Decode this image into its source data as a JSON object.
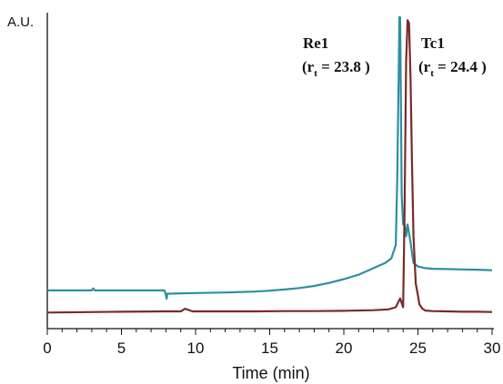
{
  "chart_data": {
    "type": "line",
    "title": "",
    "xlabel": "Time (min)",
    "ylabel": "A.U.",
    "xlim": [
      0,
      30
    ],
    "ylim": [
      0,
      100
    ],
    "xticks": [
      "0",
      "5",
      "10",
      "15",
      "20",
      "25",
      "30"
    ],
    "grid": false,
    "legend": "none",
    "series": [
      {
        "name": "",
        "color": "#2e8fa0",
        "x": [
          0,
          3.0,
          3.1,
          3.2,
          7.9,
          8.0,
          8.05,
          8.1,
          8.2,
          10,
          12,
          14,
          15,
          16,
          17,
          18,
          19,
          20,
          21,
          22,
          22.8,
          23.2,
          23.5,
          23.6,
          23.7,
          23.75,
          23.8,
          23.85,
          23.9,
          24.0,
          24.1,
          24.2,
          24.3,
          24.5,
          24.7,
          25.0,
          25.5,
          26,
          27,
          28,
          29,
          30
        ],
        "y": [
          7.7,
          7.7,
          8.4,
          7.7,
          7.7,
          6.2,
          4.9,
          6.6,
          6.6,
          6.8,
          7.0,
          7.3,
          7.6,
          8.0,
          8.5,
          9.2,
          10.2,
          11.5,
          13.0,
          15.2,
          17.0,
          18.5,
          23.0,
          45.0,
          80.0,
          100.0,
          100.0,
          70.0,
          40.0,
          30.0,
          30.0,
          26.0,
          30.0,
          24.0,
          17.0,
          15.8,
          15.2,
          15.0,
          14.9,
          14.8,
          14.7,
          14.5
        ]
      },
      {
        "name": "",
        "color": "#7a2a2a",
        "x": [
          0,
          5,
          8,
          9.0,
          9.3,
          9.8,
          10,
          12,
          14,
          16,
          18,
          20,
          22,
          23,
          23.5,
          23.8,
          24.0,
          24.1,
          24.2,
          24.3,
          24.4,
          24.5,
          24.6,
          24.7,
          24.85,
          25.0,
          25.1,
          25.3,
          25.5,
          26,
          27,
          28,
          29,
          30
        ],
        "y": [
          0.2,
          0.5,
          0.6,
          0.6,
          1.5,
          0.6,
          0.6,
          0.6,
          0.6,
          0.7,
          0.7,
          0.8,
          1.0,
          1.3,
          2.0,
          5.0,
          2.0,
          35.0,
          85.0,
          99.0,
          98.0,
          80.0,
          50.0,
          26.0,
          10.0,
          6.0,
          3.0,
          1.5,
          0.9,
          0.7,
          0.6,
          0.5,
          0.5,
          0.4
        ]
      }
    ],
    "annotations": [
      {
        "label": "Re1",
        "rt_prefix": "(r",
        "rt_sub": "t",
        "rt_value": " = 23.8 )"
      },
      {
        "label": "Tc1",
        "rt_prefix": "(r",
        "rt_sub": "t",
        "rt_value": " = 24.4 )"
      }
    ]
  }
}
